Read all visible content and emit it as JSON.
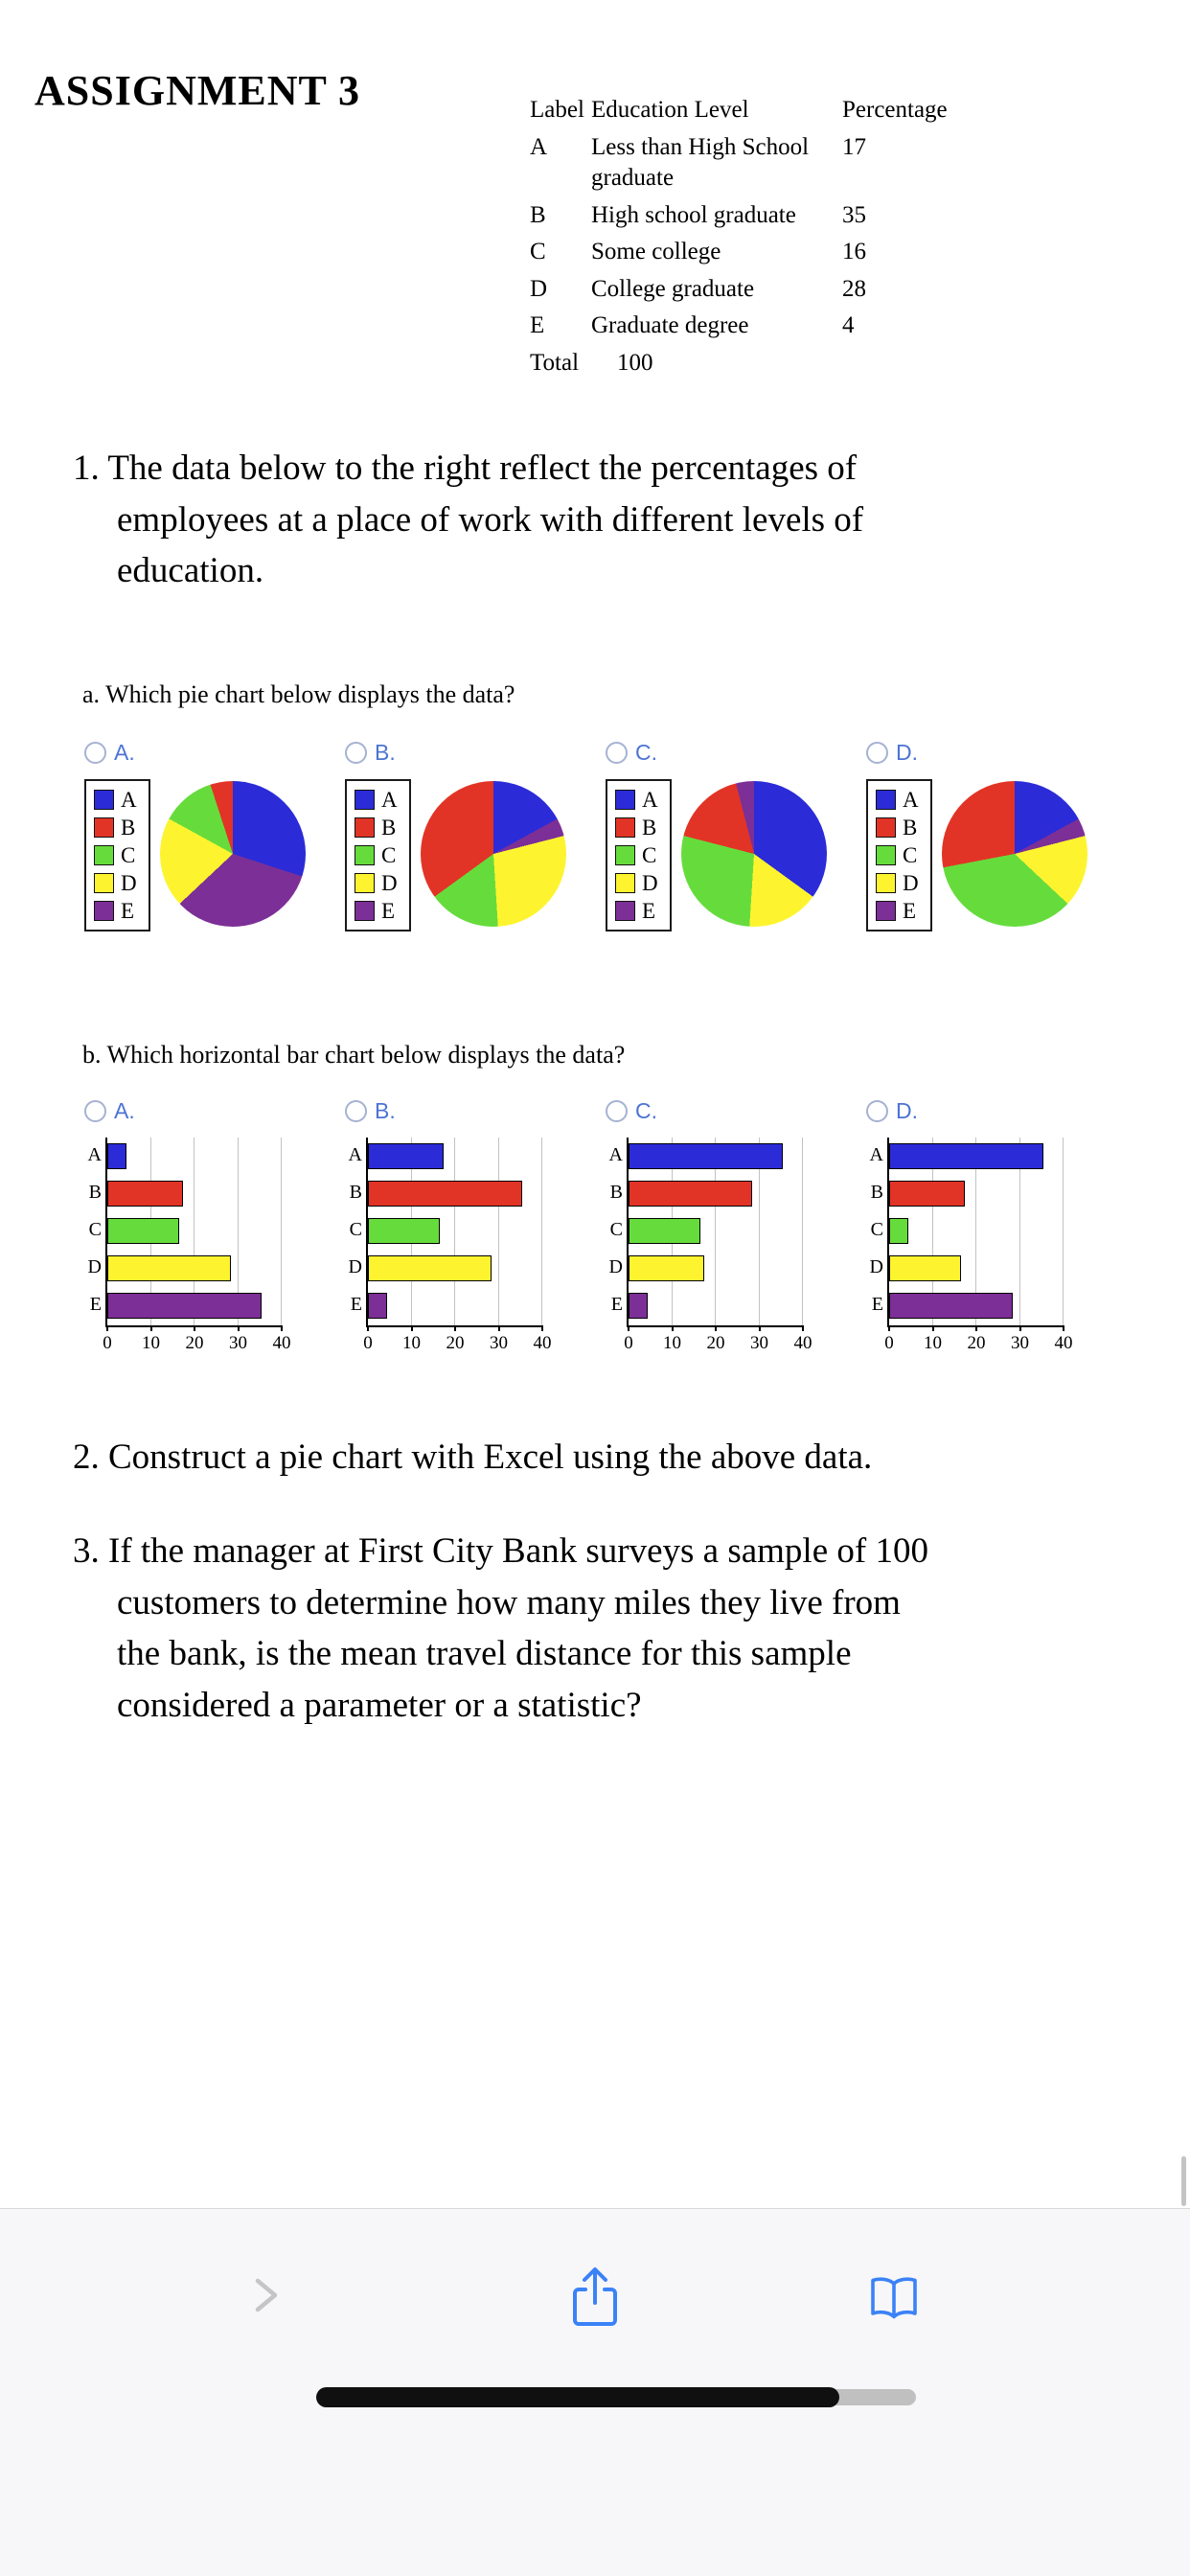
{
  "page": {
    "title": "ASSIGNMENT 3"
  },
  "table": {
    "header": {
      "label": "Label",
      "education": "Education Level",
      "percentage": "Percentage"
    },
    "rows": [
      {
        "label": "A",
        "education": "Less than High School graduate",
        "percentage": "17"
      },
      {
        "label": "B",
        "education": "High school graduate",
        "percentage": "35"
      },
      {
        "label": "C",
        "education": "Some college",
        "percentage": "16"
      },
      {
        "label": "D",
        "education": "College graduate",
        "percentage": "28"
      },
      {
        "label": "E",
        "education": "Graduate degree",
        "percentage": "4"
      }
    ],
    "total_label": "Total",
    "total_value": "100"
  },
  "questions": {
    "q1": {
      "lines": [
        "1. The data below to the right reflect the percentages of",
        "employees at a place of work with different levels of",
        "education."
      ]
    },
    "q1a_prompt": "a. Which pie chart below displays the data?",
    "q1b_prompt": "b. Which horizontal bar chart below displays the data?",
    "q2": "2. Construct a pie chart with Excel using the above data.",
    "q3": {
      "lines": [
        "3. If the manager at First City Bank surveys a sample of 100",
        "customers to determine how many miles they live from",
        "the bank, is the mean travel distance for this sample",
        "considered a parameter or a statistic?"
      ]
    }
  },
  "option_labels": [
    "A.",
    "B.",
    "C.",
    "D."
  ],
  "palette": {
    "blue": "#2b2bd8",
    "red": "#e23426",
    "green": "#66dc3c",
    "yellow": "#fdf42f",
    "purple": "#7c2f96"
  },
  "legend": [
    {
      "label": "A",
      "color": "blue"
    },
    {
      "label": "B",
      "color": "red"
    },
    {
      "label": "C",
      "color": "green"
    },
    {
      "label": "D",
      "color": "yellow"
    },
    {
      "label": "E",
      "color": "purple"
    }
  ],
  "chart_data": [
    {
      "type": "pie",
      "question": "1a",
      "legend_labels": [
        "A",
        "B",
        "C",
        "D",
        "E"
      ],
      "options": [
        {
          "option": "A.",
          "slices": [
            [
              "blue",
              30
            ],
            [
              "purple",
              33
            ],
            [
              "yellow",
              20
            ],
            [
              "green",
              12
            ],
            [
              "red",
              5
            ]
          ]
        },
        {
          "option": "B.",
          "slices": [
            [
              "blue",
              17
            ],
            [
              "purple",
              4
            ],
            [
              "yellow",
              28
            ],
            [
              "green",
              16
            ],
            [
              "red",
              35
            ]
          ]
        },
        {
          "option": "C.",
          "slices": [
            [
              "blue",
              35
            ],
            [
              "yellow",
              16
            ],
            [
              "green",
              28
            ],
            [
              "red",
              17
            ],
            [
              "purple",
              4
            ]
          ]
        },
        {
          "option": "D.",
          "slices": [
            [
              "blue",
              17
            ],
            [
              "purple",
              4
            ],
            [
              "yellow",
              16
            ],
            [
              "green",
              35
            ],
            [
              "red",
              28
            ]
          ]
        }
      ]
    },
    {
      "type": "bar",
      "orientation": "horizontal",
      "question": "1b",
      "categories": [
        "A",
        "B",
        "C",
        "D",
        "E"
      ],
      "xlim": [
        0,
        40
      ],
      "xticks": [
        0,
        10,
        20,
        30,
        40
      ],
      "options": [
        {
          "option": "A.",
          "values": [
            4,
            17,
            16,
            28,
            35
          ]
        },
        {
          "option": "B.",
          "values": [
            17,
            35,
            16,
            28,
            4
          ]
        },
        {
          "option": "C.",
          "values": [
            35,
            28,
            16,
            17,
            4
          ]
        },
        {
          "option": "D.",
          "values": [
            35,
            17,
            4,
            16,
            28
          ]
        }
      ]
    }
  ],
  "toolbar": {
    "icons": [
      "forward-chevron-icon",
      "share-icon",
      "book-icon"
    ]
  }
}
